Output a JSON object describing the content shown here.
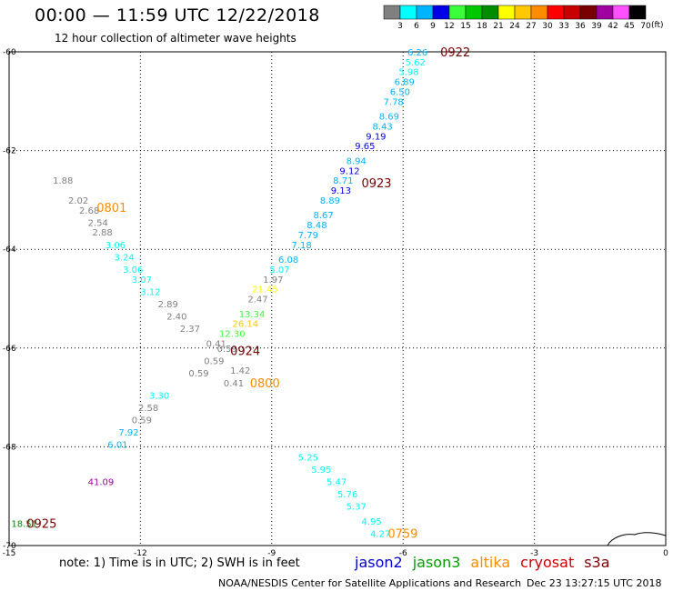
{
  "title": "00:00 — 11:59 UTC 12/22/2018",
  "subtitle": "12 hour collection of altimeter wave heights",
  "note": "note: 1) Time is in UTC; 2) SWH is in feet",
  "footer_left": "NOAA/NESDIS Center for Satellite Applications and Research",
  "footer_right": "Dec 23 13:27:15 UTC 2018",
  "colorbar": {
    "unit": "(ft)",
    "ticks": [
      "3",
      "6",
      "9",
      "12",
      "15",
      "18",
      "21",
      "24",
      "27",
      "30",
      "33",
      "36",
      "39",
      "42",
      "45",
      "70"
    ],
    "colors": [
      "#808080",
      "#00ffff",
      "#00b4ff",
      "#0000e6",
      "#3cff3c",
      "#00c800",
      "#008c00",
      "#ffff00",
      "#ffc800",
      "#ff8c00",
      "#ff0000",
      "#c80000",
      "#780000",
      "#a000a0",
      "#ff50ff",
      "#000000"
    ]
  },
  "satellites": [
    {
      "name": "jason2",
      "color": "#0000cc"
    },
    {
      "name": "jason3",
      "color": "#00a000"
    },
    {
      "name": "altika",
      "color": "#ff8c00"
    },
    {
      "name": "cryosat",
      "color": "#cc0000"
    },
    {
      "name": "s3a",
      "color": "#780000"
    }
  ],
  "chart_data": {
    "type": "scatter",
    "xlim": [
      -15,
      0
    ],
    "ylim": [
      -70,
      -60
    ],
    "xticks": [
      "-15",
      "-12",
      "-9",
      "-6",
      "-3",
      "0"
    ],
    "yticks": [
      "-60",
      "-62",
      "-64",
      "-66",
      "-68",
      "-70"
    ],
    "grid": true,
    "points": [
      {
        "lon": -5.9,
        "lat": -60.0,
        "v": "6.26",
        "c": "#00b4ff"
      },
      {
        "lon": -5.95,
        "lat": -60.2,
        "v": "5.62",
        "c": "#00ffff"
      },
      {
        "lon": -6.1,
        "lat": -60.4,
        "v": "5.98",
        "c": "#00ffff"
      },
      {
        "lon": -6.2,
        "lat": -60.6,
        "v": "6.89",
        "c": "#00b4ff"
      },
      {
        "lon": -6.3,
        "lat": -60.8,
        "v": "6.50",
        "c": "#00b4ff"
      },
      {
        "lon": -6.45,
        "lat": -61.0,
        "v": "7.78",
        "c": "#00b4ff"
      },
      {
        "lon": -6.55,
        "lat": -61.3,
        "v": "8.69",
        "c": "#00b4ff"
      },
      {
        "lon": -6.7,
        "lat": -61.5,
        "v": "8.43",
        "c": "#00b4ff"
      },
      {
        "lon": -6.85,
        "lat": -61.7,
        "v": "9.19",
        "c": "#0000e6"
      },
      {
        "lon": -7.1,
        "lat": -61.9,
        "v": "9.65",
        "c": "#0000e6"
      },
      {
        "lon": -7.3,
        "lat": -62.2,
        "v": "8.94",
        "c": "#00b4ff"
      },
      {
        "lon": -7.45,
        "lat": -62.4,
        "v": "9.12",
        "c": "#0000e6"
      },
      {
        "lon": -7.6,
        "lat": -62.6,
        "v": "8.71",
        "c": "#00b4ff"
      },
      {
        "lon": -7.65,
        "lat": -62.8,
        "v": "9.13",
        "c": "#0000e6"
      },
      {
        "lon": -7.9,
        "lat": -63.0,
        "v": "8.89",
        "c": "#00b4ff"
      },
      {
        "lon": -8.05,
        "lat": -63.3,
        "v": "8.67",
        "c": "#00b4ff"
      },
      {
        "lon": -8.2,
        "lat": -63.5,
        "v": "8.48",
        "c": "#00b4ff"
      },
      {
        "lon": -8.4,
        "lat": -63.7,
        "v": "7.79",
        "c": "#00b4ff"
      },
      {
        "lon": -8.55,
        "lat": -63.9,
        "v": "7.18",
        "c": "#00b4ff"
      },
      {
        "lon": -8.85,
        "lat": -64.2,
        "v": "6.08",
        "c": "#00b4ff"
      },
      {
        "lon": -9.05,
        "lat": -64.4,
        "v": "5.07",
        "c": "#00ffff"
      },
      {
        "lon": -9.2,
        "lat": -64.6,
        "v": "1.97",
        "c": "#808080"
      },
      {
        "lon": -9.45,
        "lat": -64.8,
        "v": "21.45",
        "c": "#ffff00"
      },
      {
        "lon": -9.55,
        "lat": -65.0,
        "v": "2.47",
        "c": "#808080"
      },
      {
        "lon": -9.75,
        "lat": -65.3,
        "v": "13.34",
        "c": "#3cff3c"
      },
      {
        "lon": -9.9,
        "lat": -65.5,
        "v": "26.14",
        "c": "#ffc800"
      },
      {
        "lon": -10.2,
        "lat": -65.7,
        "v": "12.30",
        "c": "#3cff3c"
      },
      {
        "lon": -10.5,
        "lat": -65.9,
        "v": "0.41",
        "c": "#808080"
      },
      {
        "lon": -10.25,
        "lat": -66.0,
        "v": "0.59",
        "c": "#808080"
      },
      {
        "lon": -10.55,
        "lat": -66.25,
        "v": "0.59",
        "c": "#808080"
      },
      {
        "lon": -10.9,
        "lat": -66.5,
        "v": "0.59",
        "c": "#808080"
      },
      {
        "lon": -9.95,
        "lat": -66.45,
        "v": "1.42",
        "c": "#808080"
      },
      {
        "lon": -10.1,
        "lat": -66.7,
        "v": "0.41",
        "c": "#808080"
      },
      {
        "lon": -11.8,
        "lat": -66.95,
        "v": "3.30",
        "c": "#00ffff"
      },
      {
        "lon": -12.05,
        "lat": -67.2,
        "v": "2.58",
        "c": "#808080"
      },
      {
        "lon": -12.2,
        "lat": -67.45,
        "v": "0.59",
        "c": "#808080"
      },
      {
        "lon": -12.5,
        "lat": -67.7,
        "v": "7.92",
        "c": "#00b4ff"
      },
      {
        "lon": -12.75,
        "lat": -67.95,
        "v": "6.01",
        "c": "#00b4ff"
      },
      {
        "lon": -14.0,
        "lat": -62.6,
        "v": "1.88",
        "c": "#808080"
      },
      {
        "lon": -13.65,
        "lat": -63.0,
        "v": "2.02",
        "c": "#808080"
      },
      {
        "lon": -13.4,
        "lat": -63.2,
        "v": "2.68",
        "c": "#808080"
      },
      {
        "lon": -13.2,
        "lat": -63.45,
        "v": "2.54",
        "c": "#808080"
      },
      {
        "lon": -13.1,
        "lat": -63.65,
        "v": "2.88",
        "c": "#808080"
      },
      {
        "lon": -12.8,
        "lat": -63.9,
        "v": "3.06",
        "c": "#00ffff"
      },
      {
        "lon": -12.6,
        "lat": -64.15,
        "v": "3.24",
        "c": "#00ffff"
      },
      {
        "lon": -12.4,
        "lat": -64.4,
        "v": "3.06",
        "c": "#00ffff"
      },
      {
        "lon": -12.2,
        "lat": -64.6,
        "v": "3.07",
        "c": "#00ffff"
      },
      {
        "lon": -12.0,
        "lat": -64.85,
        "v": "3.12",
        "c": "#00ffff"
      },
      {
        "lon": -11.6,
        "lat": -65.1,
        "v": "2.89",
        "c": "#808080"
      },
      {
        "lon": -11.4,
        "lat": -65.35,
        "v": "2.40",
        "c": "#808080"
      },
      {
        "lon": -11.1,
        "lat": -65.6,
        "v": "2.37",
        "c": "#808080"
      },
      {
        "lon": -8.4,
        "lat": -68.2,
        "v": "5.25",
        "c": "#00ffff"
      },
      {
        "lon": -8.1,
        "lat": -68.45,
        "v": "5.95",
        "c": "#00ffff"
      },
      {
        "lon": -7.75,
        "lat": -68.7,
        "v": "5.47",
        "c": "#00ffff"
      },
      {
        "lon": -7.5,
        "lat": -68.95,
        "v": "5.76",
        "c": "#00ffff"
      },
      {
        "lon": -7.3,
        "lat": -69.2,
        "v": "5.37",
        "c": "#00ffff"
      },
      {
        "lon": -6.95,
        "lat": -69.5,
        "v": "4.95",
        "c": "#00ffff"
      },
      {
        "lon": -6.75,
        "lat": -69.75,
        "v": "4.27",
        "c": "#00ffff"
      },
      {
        "lon": -13.2,
        "lat": -68.7,
        "v": "41.09",
        "c": "#a000a0"
      },
      {
        "lon": -14.95,
        "lat": -69.55,
        "v": "18.51",
        "c": "#008c00"
      }
    ],
    "time_labels": [
      {
        "lon": -5.15,
        "lat": -60.0,
        "t": "0922",
        "c": "#780000"
      },
      {
        "lon": -6.95,
        "lat": -62.65,
        "t": "0923",
        "c": "#780000"
      },
      {
        "lon": -13.0,
        "lat": -63.15,
        "t": "0801",
        "c": "#ff8c00"
      },
      {
        "lon": -9.95,
        "lat": -66.05,
        "t": "0924",
        "c": "#780000"
      },
      {
        "lon": -9.5,
        "lat": -66.7,
        "t": "0800",
        "c": "#ff8c00"
      },
      {
        "lon": -14.6,
        "lat": -69.55,
        "t": "0925",
        "c": "#780000"
      },
      {
        "lon": -6.35,
        "lat": -69.75,
        "t": "0759",
        "c": "#ff8c00"
      }
    ]
  }
}
